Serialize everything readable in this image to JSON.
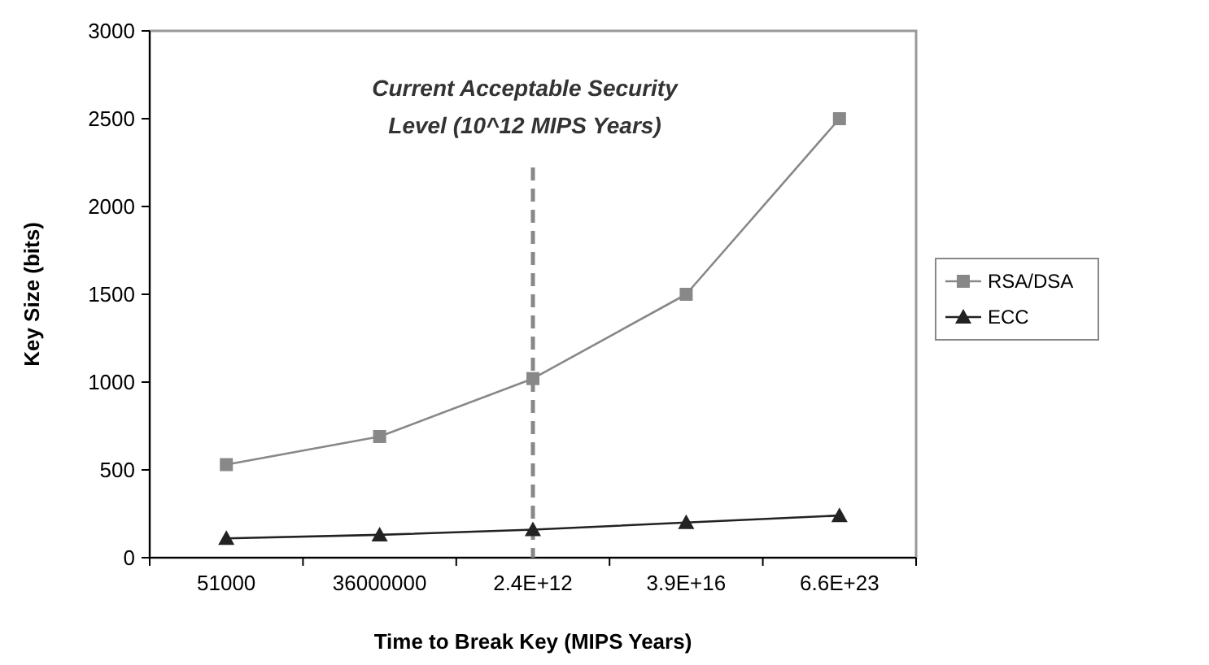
{
  "chart_data": {
    "type": "line",
    "xlabel": "Time to Break Key (MIPS Years)",
    "ylabel": "Key Size (bits)",
    "categories": [
      "51000",
      "36000000",
      "2.4E+12",
      "3.9E+16",
      "6.6E+23"
    ],
    "ylim": [
      0,
      3000
    ],
    "yticks": [
      0,
      500,
      1000,
      1500,
      2000,
      2500,
      3000
    ],
    "grid": false,
    "legend": "right",
    "series": [
      {
        "name": "RSA/DSA",
        "color": "#888888",
        "marker": "square",
        "values": [
          530,
          690,
          1020,
          1500,
          2500
        ]
      },
      {
        "name": "ECC",
        "color": "#222222",
        "marker": "triangle",
        "values": [
          110,
          130,
          160,
          200,
          240
        ]
      }
    ],
    "ref_lines": [
      {
        "axis": "x",
        "value": "2.4E+12",
        "label": "Current Acceptable Security Level (10^12 MIPS Years)",
        "color": "#888888",
        "line_style": "dashed"
      }
    ]
  }
}
